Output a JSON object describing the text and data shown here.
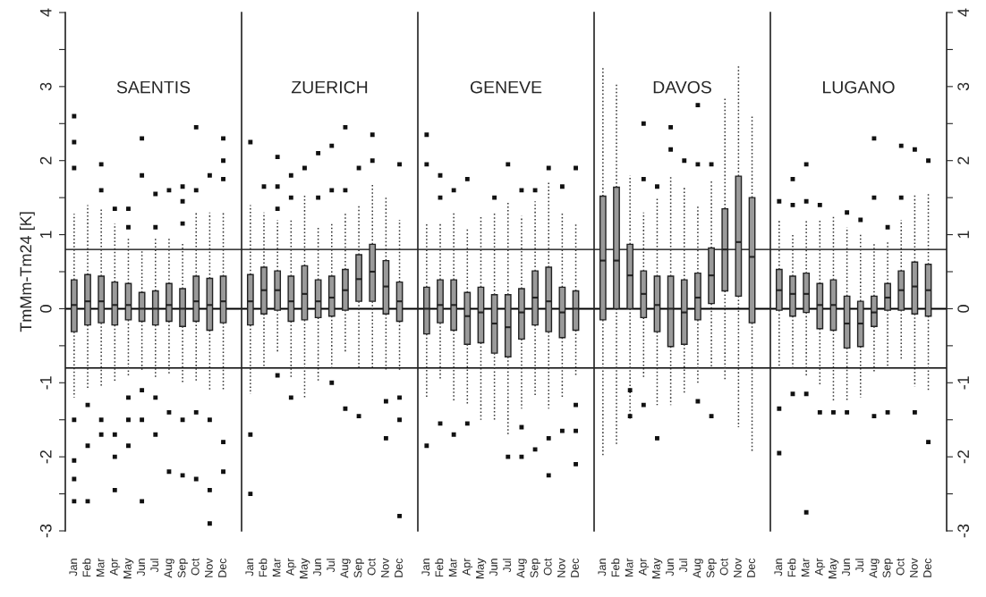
{
  "chart_data": [
    {
      "type": "box",
      "title": "SAENTIS",
      "ylabel": "TmMm-Tm24 [K]",
      "color": "#9a9a9a",
      "categories": [
        "Jan",
        "Feb",
        "Mar",
        "Apr",
        "May",
        "Jun",
        "Jul",
        "Aug",
        "Sep",
        "Oct",
        "Nov",
        "Dec"
      ],
      "ylim": [
        -3,
        4
      ],
      "yticks": [
        -3,
        {
          "value": -2.5,
          "label": null
        },
        -2,
        {
          "value": -1.5,
          "label": null
        },
        -1,
        {
          "value": -0.5,
          "label": null
        },
        0,
        {
          "value": 0.5,
          "label": null
        },
        1,
        {
          "value": 1.5,
          "label": null
        },
        2,
        {
          "value": 2.5,
          "label": null
        },
        3,
        {
          "value": 3.5,
          "label": null
        },
        4
      ],
      "ref_lines": [
        {
          "axis": "y",
          "value": 0.8
        },
        {
          "axis": "y",
          "value": 0
        },
        {
          "axis": "y",
          "value": -0.8
        }
      ],
      "boxes": [
        {
          "low": -1.2,
          "q1": -0.31,
          "median": 0.05,
          "q3": 0.39,
          "high": 1.28,
          "outliers": [
            1.9,
            2.25,
            2.6,
            -1.5,
            -2.05,
            -2.3,
            -2.6
          ]
        },
        {
          "low": -1.1,
          "q1": -0.22,
          "median": 0.1,
          "q3": 0.46,
          "high": 1.4,
          "outliers": [
            -1.3,
            -1.85,
            -2.6
          ]
        },
        {
          "low": -1.05,
          "q1": -0.19,
          "median": 0.1,
          "q3": 0.44,
          "high": 1.35,
          "outliers": [
            1.6,
            1.95,
            -1.5,
            -1.7
          ]
        },
        {
          "low": -1.0,
          "q1": -0.22,
          "median": 0.05,
          "q3": 0.36,
          "high": 1.15,
          "outliers": [
            1.35,
            -1.7,
            -2.0,
            -2.45
          ]
        },
        {
          "low": -0.9,
          "q1": -0.15,
          "median": 0.05,
          "q3": 0.34,
          "high": 0.95,
          "outliers": [
            1.1,
            1.35,
            -1.2,
            -1.5,
            -1.85
          ]
        },
        {
          "low": -0.85,
          "q1": -0.17,
          "median": 0.0,
          "q3": 0.22,
          "high": 0.8,
          "outliers": [
            1.8,
            2.3,
            -1.1,
            -1.5,
            -2.6
          ]
        },
        {
          "low": -0.95,
          "q1": -0.22,
          "median": 0.0,
          "q3": 0.24,
          "high": 0.95,
          "outliers": [
            1.1,
            1.55,
            -1.2,
            -1.7
          ]
        },
        {
          "low": -0.9,
          "q1": -0.17,
          "median": 0.05,
          "q3": 0.34,
          "high": 0.95,
          "outliers": [
            1.6,
            -1.4,
            -2.2
          ]
        },
        {
          "low": -1.0,
          "q1": -0.24,
          "median": 0.0,
          "q3": 0.27,
          "high": 0.9,
          "outliers": [
            1.15,
            1.45,
            1.65,
            -1.5,
            -2.25
          ]
        },
        {
          "low": -1.0,
          "q1": -0.17,
          "median": 0.1,
          "q3": 0.44,
          "high": 1.3,
          "outliers": [
            1.6,
            2.45,
            -1.4,
            -2.3
          ]
        },
        {
          "low": -1.1,
          "q1": -0.29,
          "median": 0.05,
          "q3": 0.41,
          "high": 1.3,
          "outliers": [
            1.8,
            -1.5,
            -2.45,
            -2.9
          ]
        },
        {
          "low": -1.1,
          "q1": -0.19,
          "median": 0.1,
          "q3": 0.44,
          "high": 1.3,
          "outliers": [
            1.75,
            2.0,
            2.3,
            -1.8,
            -2.2
          ]
        }
      ]
    },
    {
      "type": "box",
      "title": "ZUERICH",
      "color": "#9a9a9a",
      "tick_labels": "x",
      "categories": [
        "Jan",
        "Feb",
        "Mar",
        "Apr",
        "May",
        "Jun",
        "Jul",
        "Aug",
        "Sep",
        "Oct",
        "Nov",
        "Dec"
      ],
      "ylim": [
        -3,
        4
      ],
      "ref_lines": [
        {
          "axis": "y",
          "value": 0.8
        },
        {
          "axis": "y",
          "value": 0
        },
        {
          "axis": "y",
          "value": -0.8
        }
      ],
      "boxes": [
        {
          "low": -1.15,
          "q1": -0.22,
          "median": 0.1,
          "q3": 0.46,
          "high": 1.4,
          "outliers": [
            2.25,
            -1.7,
            -2.5
          ]
        },
        {
          "low": -0.8,
          "q1": -0.07,
          "median": 0.25,
          "q3": 0.56,
          "high": 1.3,
          "outliers": [
            1.65
          ]
        },
        {
          "low": -0.6,
          "q1": -0.02,
          "median": 0.25,
          "q3": 0.51,
          "high": 1.2,
          "outliers": [
            1.35,
            1.65,
            2.05,
            -0.9
          ]
        },
        {
          "low": -0.95,
          "q1": -0.17,
          "median": 0.1,
          "q3": 0.44,
          "high": 1.2,
          "outliers": [
            1.5,
            1.8,
            -1.2
          ]
        },
        {
          "low": -1.2,
          "q1": -0.15,
          "median": 0.2,
          "q3": 0.58,
          "high": 1.55,
          "outliers": [
            1.9
          ]
        },
        {
          "low": -1.0,
          "q1": -0.12,
          "median": 0.1,
          "q3": 0.39,
          "high": 1.1,
          "outliers": [
            1.5,
            2.1
          ]
        },
        {
          "low": -0.8,
          "q1": -0.1,
          "median": 0.15,
          "q3": 0.44,
          "high": 1.15,
          "outliers": [
            1.6,
            2.2,
            -1.0
          ]
        },
        {
          "low": -0.6,
          "q1": -0.02,
          "median": 0.25,
          "q3": 0.53,
          "high": 1.3,
          "outliers": [
            1.6,
            2.45,
            -1.35
          ]
        },
        {
          "low": -0.8,
          "q1": 0.1,
          "median": 0.4,
          "q3": 0.73,
          "high": 1.4,
          "outliers": [
            1.9,
            -1.45
          ]
        },
        {
          "low": -0.8,
          "q1": 0.1,
          "median": 0.5,
          "q3": 0.87,
          "high": 1.7,
          "outliers": [
            2.0,
            2.35
          ]
        },
        {
          "low": -0.85,
          "q1": -0.07,
          "median": 0.3,
          "q3": 0.65,
          "high": 1.5,
          "outliers": [
            -1.25,
            -1.75
          ]
        },
        {
          "low": -0.85,
          "q1": -0.17,
          "median": 0.1,
          "q3": 0.36,
          "high": 1.2,
          "outliers": [
            1.95,
            -1.2,
            -1.5,
            -2.8
          ]
        }
      ]
    },
    {
      "type": "box",
      "title": "GENEVE",
      "color": "#9a9a9a",
      "tick_labels": "x",
      "categories": [
        "Jan",
        "Feb",
        "Mar",
        "Apr",
        "May",
        "Jun",
        "Jul",
        "Aug",
        "Sep",
        "Oct",
        "Nov",
        "Dec"
      ],
      "ylim": [
        -3,
        4
      ],
      "ref_lines": [
        {
          "axis": "y",
          "value": 0.8
        },
        {
          "axis": "y",
          "value": 0
        },
        {
          "axis": "y",
          "value": -0.8
        }
      ],
      "boxes": [
        {
          "low": -1.2,
          "q1": -0.34,
          "median": 0.0,
          "q3": 0.29,
          "high": 1.15,
          "outliers": [
            1.95,
            2.35,
            -1.85
          ]
        },
        {
          "low": -0.95,
          "q1": -0.19,
          "median": 0.05,
          "q3": 0.39,
          "high": 1.15,
          "outliers": [
            1.5,
            1.8,
            -1.55
          ]
        },
        {
          "low": -1.25,
          "q1": -0.29,
          "median": 0.05,
          "q3": 0.39,
          "high": 1.3,
          "outliers": [
            1.6,
            -1.7
          ]
        },
        {
          "low": -1.3,
          "q1": -0.48,
          "median": -0.1,
          "q3": 0.22,
          "high": 1.1,
          "outliers": [
            1.75,
            -1.55
          ]
        },
        {
          "low": -1.5,
          "q1": -0.46,
          "median": -0.05,
          "q3": 0.29,
          "high": 1.25
        },
        {
          "low": -1.5,
          "q1": -0.6,
          "median": -0.2,
          "q3": 0.19,
          "high": 1.3,
          "outliers": [
            1.5
          ]
        },
        {
          "low": -1.7,
          "q1": -0.65,
          "median": -0.25,
          "q3": 0.19,
          "high": 1.45,
          "outliers": [
            1.95,
            -2.0
          ]
        },
        {
          "low": -1.35,
          "q1": -0.41,
          "median": -0.05,
          "q3": 0.27,
          "high": 1.25,
          "outliers": [
            1.6,
            -1.6,
            -2.0
          ]
        },
        {
          "low": -1.2,
          "q1": -0.22,
          "median": 0.15,
          "q3": 0.51,
          "high": 1.45,
          "outliers": [
            1.6,
            -1.9
          ]
        },
        {
          "low": -1.35,
          "q1": -0.31,
          "median": 0.1,
          "q3": 0.56,
          "high": 1.7,
          "outliers": [
            1.9,
            -1.75,
            -2.25
          ]
        },
        {
          "low": -1.2,
          "q1": -0.39,
          "median": -0.05,
          "q3": 0.29,
          "high": 1.3,
          "outliers": [
            1.65,
            -1.65
          ]
        },
        {
          "low": -0.9,
          "q1": -0.29,
          "median": 0.0,
          "q3": 0.24,
          "high": 1.15,
          "outliers": [
            1.9,
            -1.3,
            -1.65,
            -2.1
          ]
        }
      ]
    },
    {
      "type": "box",
      "title": "DAVOS",
      "color": "#9a9a9a",
      "tick_labels": "x",
      "categories": [
        "Jan",
        "Feb",
        "Mar",
        "Apr",
        "May",
        "Jun",
        "Jul",
        "Aug",
        "Sep",
        "Oct",
        "Nov",
        "Dec"
      ],
      "ylim": [
        -3,
        4
      ],
      "ref_lines": [
        {
          "axis": "y",
          "value": 0.8
        },
        {
          "axis": "y",
          "value": 0
        },
        {
          "axis": "y",
          "value": -0.8
        }
      ],
      "boxes": [
        {
          "low": -2.0,
          "q1": -0.15,
          "median": 0.65,
          "q3": 1.52,
          "high": 3.25
        },
        {
          "low": -1.85,
          "q1": 0.0,
          "median": 0.65,
          "q3": 1.64,
          "high": 3.05
        },
        {
          "low": -1.5,
          "q1": 0.0,
          "median": 0.45,
          "q3": 0.87,
          "high": 1.8,
          "outliers": [
            -1.1,
            -1.45
          ]
        },
        {
          "low": -0.95,
          "q1": -0.12,
          "median": 0.2,
          "q3": 0.51,
          "high": 1.3,
          "outliers": [
            1.75,
            2.5,
            -1.3
          ]
        },
        {
          "low": -1.3,
          "q1": -0.31,
          "median": 0.05,
          "q3": 0.44,
          "high": 1.5,
          "outliers": [
            1.65,
            -1.75
          ]
        },
        {
          "low": -1.3,
          "q1": -0.51,
          "median": 0.0,
          "q3": 0.44,
          "high": 1.8,
          "outliers": [
            2.15,
            2.45
          ]
        },
        {
          "low": -1.15,
          "q1": -0.48,
          "median": -0.05,
          "q3": 0.39,
          "high": 1.65,
          "outliers": [
            2.0
          ]
        },
        {
          "low": -1.0,
          "q1": -0.15,
          "median": 0.15,
          "q3": 0.48,
          "high": 1.4,
          "outliers": [
            1.95,
            2.75,
            -1.25
          ]
        },
        {
          "low": -0.8,
          "q1": 0.07,
          "median": 0.45,
          "q3": 0.82,
          "high": 1.75,
          "outliers": [
            1.95,
            -1.45
          ]
        },
        {
          "low": -0.95,
          "q1": 0.24,
          "median": 0.8,
          "q3": 1.35,
          "high": 2.85
        },
        {
          "low": -1.6,
          "q1": 0.17,
          "median": 0.9,
          "q3": 1.79,
          "high": 3.3
        },
        {
          "low": -1.95,
          "q1": -0.19,
          "median": 0.7,
          "q3": 1.5,
          "high": 2.6
        }
      ]
    },
    {
      "type": "box",
      "title": "LUGANO",
      "color": "#9a9a9a",
      "categories": [
        "Jan",
        "Feb",
        "Mar",
        "Apr",
        "May",
        "Jun",
        "Jul",
        "Aug",
        "Sep",
        "Oct",
        "Nov",
        "Dec"
      ],
      "ylim": [
        -3,
        4
      ],
      "yticks": [
        -3,
        {
          "value": -2.5,
          "label": null
        },
        -2,
        {
          "value": -1.5,
          "label": null
        },
        -1,
        {
          "value": -0.5,
          "label": null
        },
        0,
        {
          "value": 0.5,
          "label": null
        },
        1,
        {
          "value": 1.5,
          "label": null
        },
        2,
        {
          "value": 2.5,
          "label": null
        },
        3,
        {
          "value": 3.5,
          "label": null
        },
        4
      ],
      "ref_lines": [
        {
          "axis": "y",
          "value": 0.8
        },
        {
          "axis": "y",
          "value": 0
        },
        {
          "axis": "y",
          "value": -0.8
        }
      ],
      "boxes": [
        {
          "low": -0.8,
          "q1": -0.02,
          "median": 0.25,
          "q3": 0.53,
          "high": 1.2,
          "outliers": [
            1.45,
            -1.35,
            -1.95
          ]
        },
        {
          "low": -0.8,
          "q1": -0.1,
          "median": 0.2,
          "q3": 0.44,
          "high": 1.0,
          "outliers": [
            1.4,
            1.75,
            -1.15
          ]
        },
        {
          "low": -0.9,
          "q1": -0.05,
          "median": 0.2,
          "q3": 0.48,
          "high": 1.2,
          "outliers": [
            1.45,
            1.95,
            -1.15,
            -2.75
          ]
        },
        {
          "low": -1.05,
          "q1": -0.27,
          "median": 0.05,
          "q3": 0.34,
          "high": 1.2,
          "outliers": [
            1.4,
            -1.4
          ]
        },
        {
          "low": -1.25,
          "q1": -0.29,
          "median": 0.05,
          "q3": 0.39,
          "high": 1.25,
          "outliers": [
            -1.4
          ]
        },
        {
          "low": -1.25,
          "q1": -0.53,
          "median": -0.2,
          "q3": 0.17,
          "high": 1.1,
          "outliers": [
            1.3,
            -1.4
          ]
        },
        {
          "low": -1.2,
          "q1": -0.51,
          "median": -0.2,
          "q3": 0.1,
          "high": 1.0,
          "outliers": [
            1.2
          ]
        },
        {
          "low": -0.85,
          "q1": -0.24,
          "median": -0.05,
          "q3": 0.17,
          "high": 0.9,
          "outliers": [
            1.5,
            2.3,
            -1.45
          ]
        },
        {
          "low": -0.8,
          "q1": -0.02,
          "median": 0.15,
          "q3": 0.34,
          "high": 0.9,
          "outliers": [
            1.1,
            -1.4
          ]
        },
        {
          "low": -0.7,
          "q1": -0.02,
          "median": 0.25,
          "q3": 0.51,
          "high": 1.2,
          "outliers": [
            1.5,
            2.2
          ]
        },
        {
          "low": -1.05,
          "q1": -0.07,
          "median": 0.3,
          "q3": 0.63,
          "high": 1.55,
          "outliers": [
            2.15,
            -1.4
          ]
        },
        {
          "low": -1.1,
          "q1": -0.1,
          "median": 0.25,
          "q3": 0.6,
          "high": 1.55,
          "outliers": [
            2.0,
            -1.8
          ]
        }
      ]
    }
  ]
}
